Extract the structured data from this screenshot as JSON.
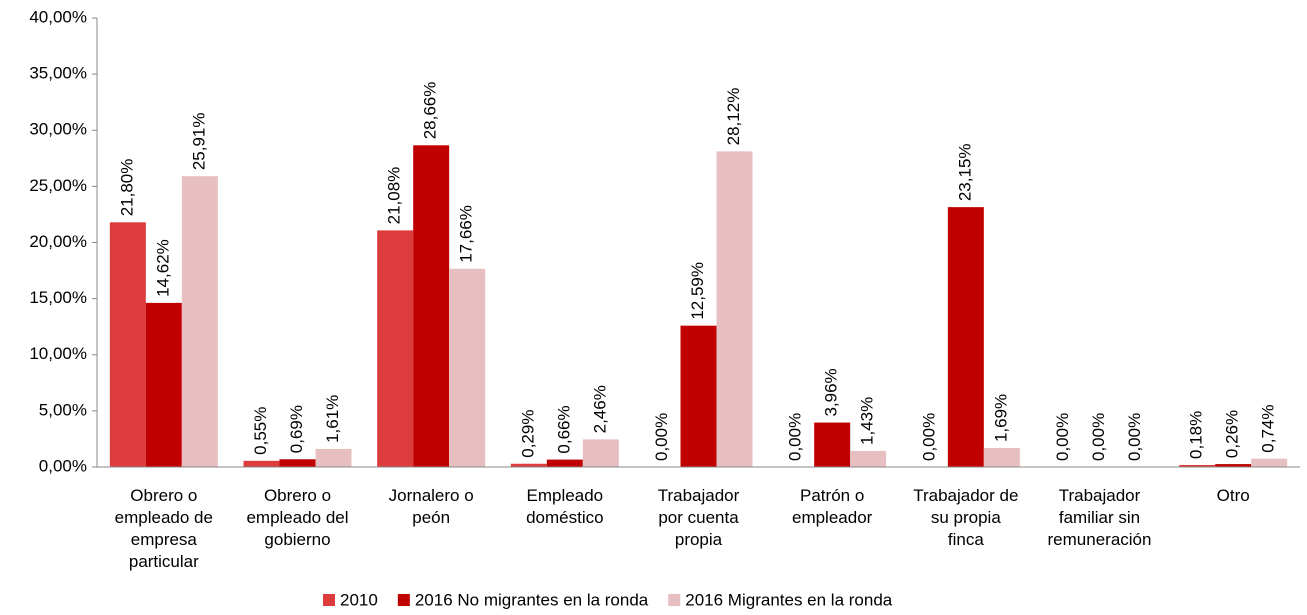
{
  "chart_data": {
    "type": "bar",
    "categories": [
      "Obrero o\nempleado de\nempresa\nparticular",
      "Obrero o\nempleado del\ngobierno",
      "Jornalero o\npeón",
      "Empleado\ndoméstico",
      "Trabajador\npor cuenta\npropia",
      "Patrón o\nempleador",
      "Trabajador de\nsu propia\nfinca",
      "Trabajador\nfamiliar sin\nremuneración",
      "Otro"
    ],
    "series": [
      {
        "name": "2010",
        "color": "#dc3c3c",
        "values": [
          21.8,
          0.55,
          21.08,
          0.29,
          0.0,
          0.0,
          0.0,
          0.0,
          0.18
        ],
        "value_labels": [
          "21,80%",
          "0,55%",
          "21,08%",
          "0,29%",
          "0,00%",
          "0,00%",
          "0,00%",
          "0,00%",
          "0,18%"
        ]
      },
      {
        "name": "2016 No migrantes en la ronda",
        "color": "#c00000",
        "values": [
          14.62,
          0.69,
          28.66,
          0.66,
          12.59,
          3.96,
          23.15,
          0.0,
          0.26
        ],
        "value_labels": [
          "14,62%",
          "0,69%",
          "28,66%",
          "0,66%",
          "12,59%",
          "3,96%",
          "23,15%",
          "0,00%",
          "0,26%"
        ]
      },
      {
        "name": "2016 Migrantes en la ronda",
        "color": "#e8bfc0",
        "values": [
          25.91,
          1.61,
          17.66,
          2.46,
          28.12,
          1.43,
          1.69,
          0.0,
          0.74
        ],
        "value_labels": [
          "25,91%",
          "1,61%",
          "17,66%",
          "2,46%",
          "28,12%",
          "1,43%",
          "1,69%",
          "0,00%",
          "0,74%"
        ]
      }
    ],
    "ylim": [
      0,
      40
    ],
    "yticks": [
      {
        "value": 0,
        "label": "0,00%"
      },
      {
        "value": 5,
        "label": "5,00%"
      },
      {
        "value": 10,
        "label": "10,00%"
      },
      {
        "value": 15,
        "label": "15,00%"
      },
      {
        "value": 20,
        "label": "20,00%"
      },
      {
        "value": 25,
        "label": "25,00%"
      },
      {
        "value": 30,
        "label": "30,00%"
      },
      {
        "value": 35,
        "label": "35,00%"
      },
      {
        "value": 40,
        "label": "40,00%"
      }
    ],
    "grid": false,
    "legend": "bottom"
  }
}
